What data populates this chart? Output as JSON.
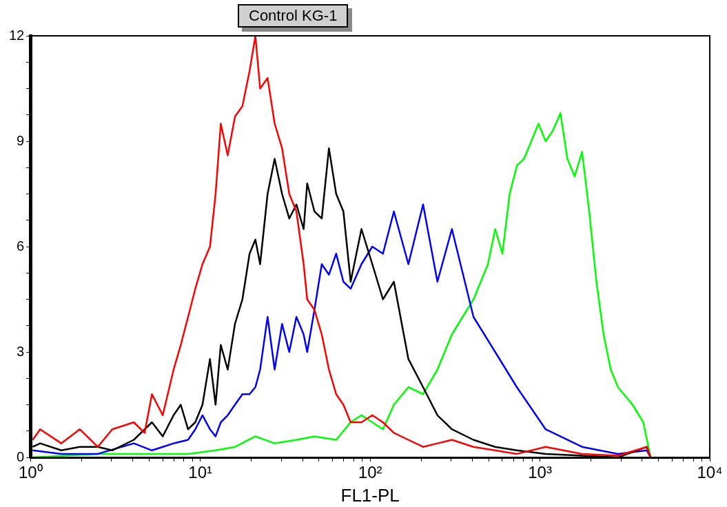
{
  "chart_data": {
    "type": "line",
    "title": "Control KG-1",
    "xlabel": "FL1-PL",
    "log": "x",
    "grid": false,
    "line_style": "solid",
    "xlim": [
      1,
      10000
    ],
    "ylim": [
      0,
      12
    ],
    "xticks": [
      {
        "value": 1,
        "label": "10⁰"
      },
      {
        "value": 2,
        "label": null
      },
      {
        "value": 3,
        "label": null
      },
      {
        "value": 4,
        "label": null
      },
      {
        "value": 5,
        "label": null
      },
      {
        "value": 6,
        "label": null
      },
      {
        "value": 7,
        "label": null
      },
      {
        "value": 8,
        "label": null
      },
      {
        "value": 9,
        "label": null
      },
      {
        "value": 10,
        "label": "10¹"
      },
      {
        "value": 20,
        "label": null
      },
      {
        "value": 30,
        "label": null
      },
      {
        "value": 40,
        "label": null
      },
      {
        "value": 50,
        "label": null
      },
      {
        "value": 60,
        "label": null
      },
      {
        "value": 70,
        "label": null
      },
      {
        "value": 80,
        "label": null
      },
      {
        "value": 90,
        "label": null
      },
      {
        "value": 100,
        "label": "10²"
      },
      {
        "value": 200,
        "label": null
      },
      {
        "value": 300,
        "label": null
      },
      {
        "value": 400,
        "label": null
      },
      {
        "value": 500,
        "label": null
      },
      {
        "value": 600,
        "label": null
      },
      {
        "value": 700,
        "label": null
      },
      {
        "value": 800,
        "label": null
      },
      {
        "value": 900,
        "label": null
      },
      {
        "value": 1000,
        "label": "10³"
      },
      {
        "value": 2000,
        "label": null
      },
      {
        "value": 3000,
        "label": null
      },
      {
        "value": 4000,
        "label": null
      },
      {
        "value": 5000,
        "label": null
      },
      {
        "value": 6000,
        "label": null
      },
      {
        "value": 7000,
        "label": null
      },
      {
        "value": 8000,
        "label": null
      },
      {
        "value": 9000,
        "label": null
      },
      {
        "value": 10000,
        "label": "10⁴"
      }
    ],
    "yticks": [
      0,
      {
        "value": 0.75,
        "label": null
      },
      {
        "value": 1.5,
        "label": null
      },
      {
        "value": 2.25,
        "label": null
      },
      3,
      {
        "value": 3.75,
        "label": null
      },
      {
        "value": 4.5,
        "label": null
      },
      {
        "value": 5.25,
        "label": null
      },
      6,
      {
        "value": 6.75,
        "label": null
      },
      {
        "value": 7.5,
        "label": null
      },
      {
        "value": 8.25,
        "label": null
      },
      9,
      {
        "value": 9.75,
        "label": null
      },
      {
        "value": 10.5,
        "label": null
      },
      {
        "value": 11.25,
        "label": null
      },
      12
    ],
    "series": [
      {
        "color": "#ff0000",
        "x": [
          1.03,
          1.14,
          1.52,
          1.95,
          2.49,
          3.03,
          4.06,
          4.7,
          5.19,
          6.01,
          6.96,
          7.67,
          8.47,
          9.34,
          10.3,
          11.4,
          12.3,
          13.2,
          14.5,
          16,
          17.7,
          19.5,
          21.1,
          22.5,
          24.9,
          27.4,
          30.3,
          33.4,
          36.8,
          40.6,
          42.6,
          47,
          51.9,
          57.2,
          63.1,
          69.6,
          76.8,
          88.9,
          103,
          119,
          138,
          168,
          205,
          249,
          303,
          406,
          545,
          731,
          1080,
          1770,
          2880,
          4260,
          4480
        ],
        "values": [
          0.5,
          0.8,
          0.4,
          0.8,
          0.3,
          0.8,
          1,
          0.7,
          1.8,
          1.2,
          2.5,
          3.2,
          4,
          4.8,
          5.5,
          6,
          7.5,
          9.5,
          8.6,
          9.7,
          10,
          11,
          12,
          10.5,
          10.8,
          9.5,
          8.8,
          7.5,
          7,
          5.5,
          4.5,
          4.2,
          3.5,
          2.5,
          1.8,
          1.5,
          1,
          1,
          1.2,
          1,
          0.7,
          0.5,
          0.3,
          0.4,
          0.5,
          0.3,
          0.2,
          0.1,
          0.3,
          0.1,
          0.05,
          0.3,
          0
        ]
      },
      {
        "color": "#000000",
        "x": [
          1.03,
          1.14,
          1.52,
          1.95,
          2.49,
          3.03,
          4.06,
          5.19,
          6.01,
          6.96,
          7.67,
          8.47,
          9.34,
          10.3,
          11.4,
          12.3,
          13.2,
          14.5,
          16,
          17.7,
          19.5,
          21.1,
          22.5,
          24.9,
          27.4,
          30.3,
          33.4,
          36.8,
          40.6,
          42.6,
          47,
          51.9,
          57.2,
          63.1,
          69.6,
          76.8,
          88.9,
          103,
          119,
          138,
          168,
          205,
          249,
          303,
          406,
          545,
          731,
          1080,
          1770,
          2880,
          4260,
          4480
        ],
        "values": [
          0.3,
          0.4,
          0.2,
          0.3,
          0.3,
          0.2,
          0.5,
          1,
          0.6,
          1.2,
          1.5,
          0.8,
          1,
          1.5,
          2.8,
          1.5,
          3.2,
          2.5,
          3.8,
          4.5,
          5.8,
          6.2,
          5.5,
          7.5,
          8.5,
          7.5,
          6.8,
          7.2,
          6.5,
          7.8,
          7,
          6.8,
          8.8,
          7.5,
          7,
          5,
          6.5,
          5.5,
          4.5,
          5,
          2.8,
          2,
          1.2,
          0.8,
          0.5,
          0.3,
          0.2,
          0.1,
          0.05,
          0,
          0.3,
          0
        ]
      },
      {
        "color": "#0000ff",
        "x": [
          1.03,
          1.52,
          2.49,
          4.06,
          5.19,
          6.01,
          6.96,
          8.47,
          9.34,
          10.3,
          11.4,
          12.3,
          13.2,
          14.5,
          16,
          17.7,
          19.5,
          21.1,
          22.5,
          24.9,
          27.4,
          30.3,
          33.4,
          36.8,
          40.6,
          42.6,
          47,
          51.9,
          57.2,
          63.1,
          69.6,
          76.8,
          88.9,
          103,
          119,
          138,
          168,
          205,
          249,
          303,
          406,
          545,
          731,
          1080,
          1770,
          2880,
          4260,
          4480
        ],
        "values": [
          0.2,
          0.1,
          0.1,
          0.4,
          0.2,
          0.3,
          0.4,
          0.5,
          0.8,
          1.2,
          0.8,
          0.6,
          1,
          1.2,
          1.5,
          1.8,
          1.8,
          2,
          2.5,
          4,
          2.5,
          3.8,
          3,
          4,
          3.5,
          3,
          4.2,
          5.5,
          5.2,
          5.8,
          5,
          4.8,
          5.5,
          6,
          5.8,
          7,
          5.5,
          7.2,
          5,
          6.5,
          4,
          3,
          2,
          0.8,
          0.3,
          0.1,
          0.2,
          0
        ]
      },
      {
        "color": "#00ff00",
        "x": [
          1.03,
          2.49,
          5.19,
          8.47,
          12.3,
          16,
          21.1,
          27.4,
          36.8,
          47,
          63.1,
          76.8,
          88.9,
          103,
          119,
          138,
          168,
          205,
          249,
          303,
          406,
          494,
          545,
          601,
          663,
          731,
          806,
          889,
          980,
          1080,
          1190,
          1320,
          1450,
          1600,
          1770,
          1950,
          2150,
          2370,
          2610,
          2880,
          3510,
          4060,
          4480
        ],
        "values": [
          0,
          0.1,
          0.1,
          0.1,
          0.2,
          0.3,
          0.6,
          0.4,
          0.5,
          0.6,
          0.5,
          1,
          1.2,
          1,
          0.8,
          1.5,
          2,
          1.8,
          2.5,
          3.5,
          4.5,
          5.5,
          6.5,
          5.8,
          7.5,
          8.3,
          8.5,
          9,
          9.5,
          9,
          9.3,
          9.8,
          8.5,
          8,
          8.7,
          7,
          5,
          3.5,
          2.5,
          2,
          1.5,
          1,
          0
        ]
      }
    ]
  }
}
